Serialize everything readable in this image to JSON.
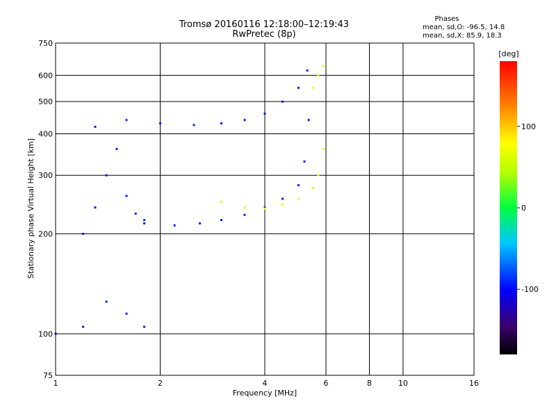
{
  "chart_data": {
    "type": "scatter",
    "title": "Tromsø 20160116 12:18:00–12:19:43",
    "subtitle": "RwPretec (8p)",
    "xlabel": "Frequency [MHz]",
    "ylabel": "Stationary phase Virtual Height [km]",
    "x_scale": "log",
    "y_scale": "log",
    "xlim": [
      1,
      16
    ],
    "ylim": [
      75,
      750
    ],
    "x_ticks": [
      1,
      2,
      4,
      6,
      8,
      10,
      16
    ],
    "y_ticks": [
      75,
      100,
      200,
      300,
      400,
      500,
      600,
      750
    ],
    "grid": true,
    "stats": {
      "title": "Phases",
      "line_o": "mean, sd,O: -96.5, 14.8",
      "line_x": "mean, sd,X:  85.9, 18.3"
    },
    "colorbar": {
      "label": "[deg]",
      "range": [
        -180,
        180
      ],
      "ticks": [
        100,
        0,
        -100
      ],
      "colormap": "rainbow"
    },
    "series": [
      {
        "name": "O",
        "phase_deg": -100,
        "traces": [
          {
            "x": [
              1.3,
              1.6,
              2.0,
              2.5,
              3.0,
              3.5,
              4.0,
              4.5,
              5.0,
              5.3
            ],
            "y": [
              420,
              440,
              430,
              425,
              430,
              440,
              460,
              500,
              550,
              620
            ]
          },
          {
            "x": [
              1.8,
              2.2,
              2.6,
              3.0,
              3.5,
              4.0,
              4.5,
              5.0,
              5.2,
              5.35
            ],
            "y": [
              215,
              212,
              215,
              220,
              228,
              240,
              255,
              280,
              330,
              440
            ]
          },
          {
            "x": [
              1.2,
              1.3,
              1.4,
              1.5,
              1.6,
              1.7,
              1.8
            ],
            "y": [
              200,
              240,
              300,
              360,
              260,
              230,
              220
            ]
          },
          {
            "x": [
              1.0,
              1.2,
              1.4,
              1.6,
              1.8
            ],
            "y": [
              100,
              105,
              125,
              115,
              105
            ]
          }
        ]
      },
      {
        "name": "X",
        "phase_deg": 100,
        "traces": [
          {
            "x": [
              3.0,
              3.5,
              4.0,
              4.5,
              5.0,
              5.5,
              5.7,
              5.9
            ],
            "y": [
              250,
              240,
              238,
              245,
              255,
              275,
              300,
              360
            ]
          },
          {
            "x": [
              5.5,
              5.7,
              5.9
            ],
            "y": [
              550,
              600,
              640
            ]
          }
        ]
      }
    ]
  }
}
